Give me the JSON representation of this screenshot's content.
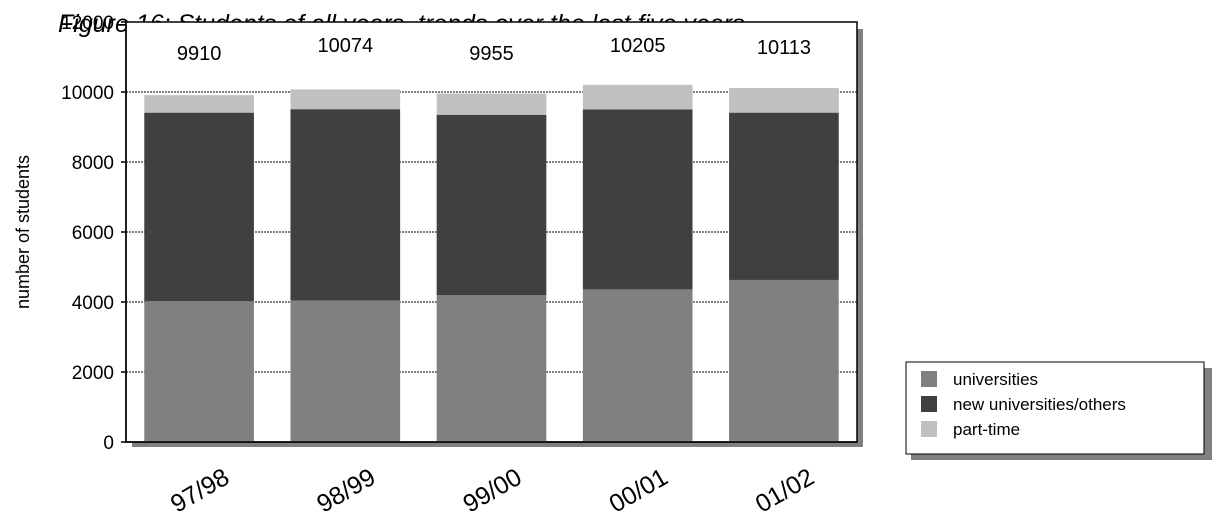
{
  "chart_data": {
    "type": "bar",
    "stacked": true,
    "title": "Figure 16: Students of all years, trends over the last five years",
    "ylabel": "number of students",
    "xlabel": "",
    "ylim": [
      0,
      12000
    ],
    "yticks": [
      0,
      2000,
      4000,
      6000,
      8000,
      10000,
      12000
    ],
    "categories": [
      "97/98",
      "98/99",
      "99/00",
      "00/01",
      "01/02"
    ],
    "series": [
      {
        "name": "universities",
        "color": "#808080",
        "values": [
          4020,
          4040,
          4200,
          4360,
          4630
        ]
      },
      {
        "name": "new universities/others",
        "color": "#404040",
        "values": [
          5390,
          5470,
          5150,
          5140,
          4780
        ]
      },
      {
        "name": "part-time",
        "color": "#c0c0c0",
        "values": [
          500,
          564,
          605,
          705,
          703
        ]
      }
    ],
    "totals": [
      "9910",
      "10074",
      "9955",
      "10205",
      "10113"
    ],
    "grid": true,
    "legend_position": "bottom-right"
  }
}
